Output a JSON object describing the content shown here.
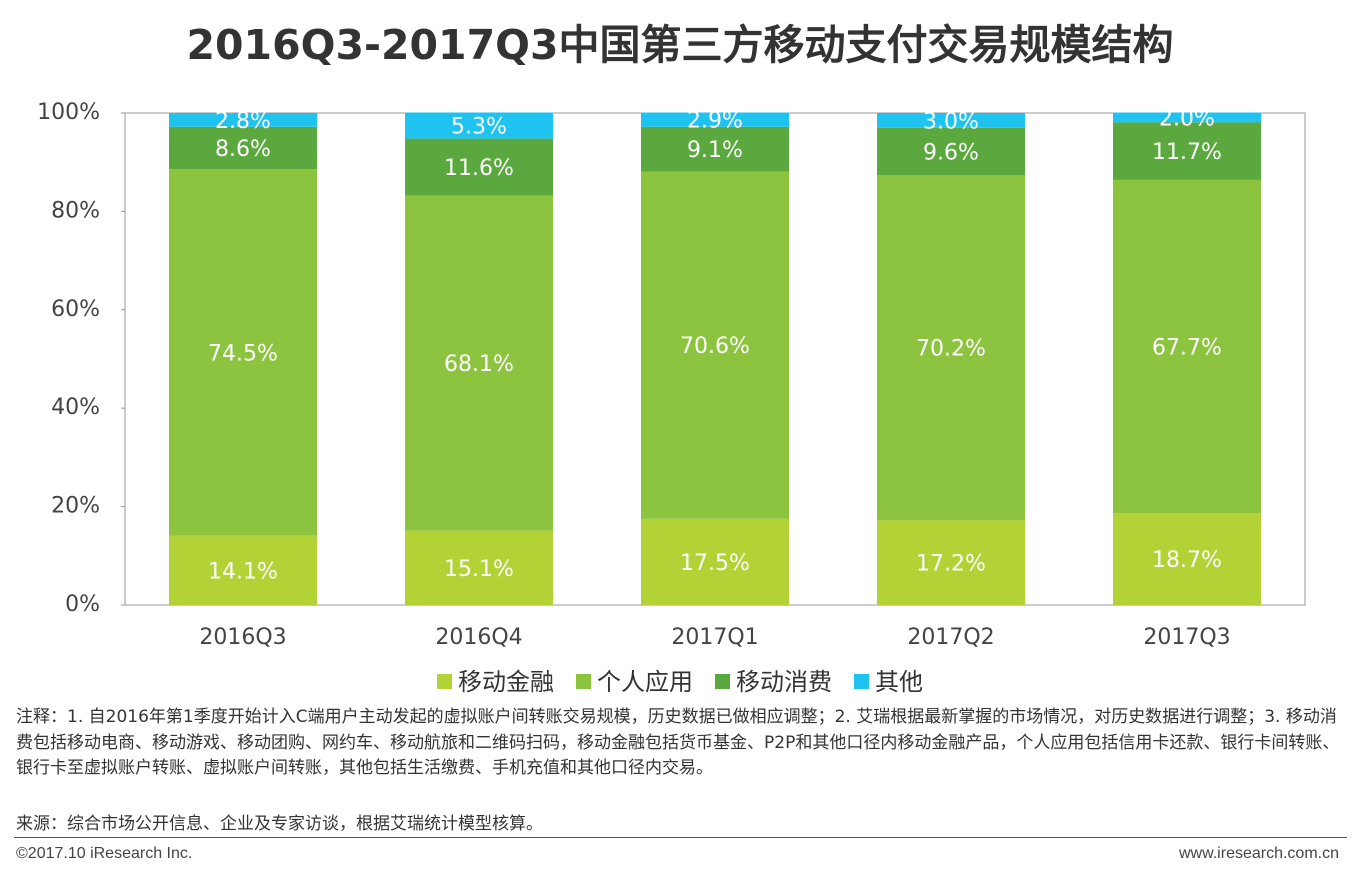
{
  "chart_data": {
    "type": "stacked_bar",
    "title": "2016Q3-2017Q3中国第三方移动支付交易规模结构",
    "categories": [
      "2016Q3",
      "2016Q4",
      "2017Q1",
      "2017Q2",
      "2017Q3"
    ],
    "series": [
      {
        "name": "移动金融",
        "color": "#b3d235",
        "values": [
          14.1,
          15.1,
          17.5,
          17.2,
          18.7
        ],
        "value_labels": [
          "14.1%",
          "15.1%",
          "17.5%",
          "17.2%",
          "18.7%"
        ]
      },
      {
        "name": "个人应用",
        "color": "#8dc43f",
        "values": [
          74.5,
          68.1,
          70.6,
          70.2,
          67.7
        ],
        "value_labels": [
          "74.5%",
          "68.1%",
          "70.6%",
          "70.2%",
          "67.7%"
        ]
      },
      {
        "name": "移动消费",
        "color": "#5aa83e",
        "values": [
          8.6,
          11.6,
          9.1,
          9.6,
          11.7
        ],
        "value_labels": [
          "8.6%",
          "11.6%",
          "9.1%",
          "9.6%",
          "11.7%"
        ]
      },
      {
        "name": "其他",
        "color": "#1fc3f0",
        "values": [
          2.8,
          5.3,
          2.9,
          3.0,
          2.0
        ],
        "value_labels": [
          "2.8%",
          "5.3%",
          "2.9%",
          "3.0%",
          "2.0%"
        ]
      }
    ],
    "ylim": [
      0,
      100
    ],
    "yticks": [
      {
        "value": 0,
        "label": "0%"
      },
      {
        "value": 20,
        "label": "20%"
      },
      {
        "value": 40,
        "label": "40%"
      },
      {
        "value": 60,
        "label": "60%"
      },
      {
        "value": 80,
        "label": "80%"
      },
      {
        "value": 100,
        "label": "100%"
      }
    ],
    "legend": "bottom"
  },
  "note": "注释：1. 自2016年第1季度开始计入C端用户主动发起的虚拟账户间转账交易规模，历史数据已做相应调整；2. 艾瑞根据最新掌握的市场情况，对历史数据进行调整；3. 移动消费包括移动电商、移动游戏、移动团购、网约车、移动航旅和二维码扫码，移动金融包括货币基金、P2P和其他口径内移动金融产品，个人应用包括信用卡还款、银行卡间转账、银行卡至虚拟账户转账、虚拟账户间转账，其他包括生活缴费、手机充值和其他口径内交易。",
  "source": "来源：综合市场公开信息、企业及专家访谈，根据艾瑞统计模型核算。",
  "copyright": "©2017.10 iResearch Inc.",
  "website": "www.iresearch.com.cn"
}
